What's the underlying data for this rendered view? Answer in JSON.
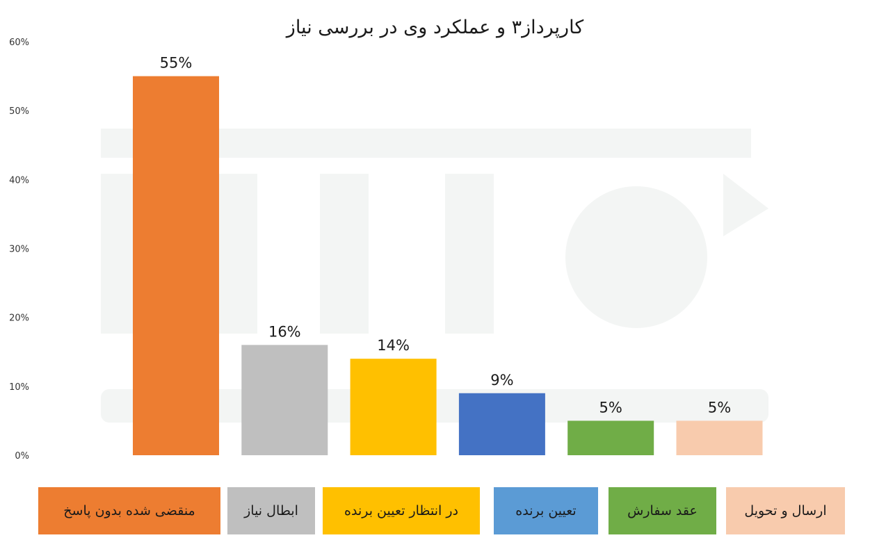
{
  "chart_data": {
    "type": "bar",
    "title": "کارپرداز۳ و عملکرد وی در بررسی نیاز",
    "categories": [
      "منقضی شده بدون پاسخ",
      "ابطال نیاز",
      "در انتظار تعیین برنده",
      "تعیین برنده",
      "عقد سفارش",
      "ارسال و تحویل"
    ],
    "values": [
      55,
      16,
      14,
      9,
      5,
      5
    ],
    "data_labels": [
      "55%",
      "16%",
      "14%",
      "9%",
      "5%",
      "5%"
    ],
    "colors": [
      "#ED7D31",
      "#BFBFBF",
      "#FFC000",
      "#4472C4",
      "#70AD47",
      "#F8CBAD"
    ],
    "legend_colors": [
      "#ED7D31",
      "#BFBFBF",
      "#FFC000",
      "#5B9BD5",
      "#70AD47",
      "#F8CBAD"
    ],
    "yticks": [
      "0%",
      "10%",
      "20%",
      "30%",
      "40%",
      "50%",
      "60%"
    ],
    "ylim": [
      0,
      60
    ],
    "xlabel": "",
    "ylabel": "",
    "grid": false,
    "legend_position": "bottom"
  }
}
